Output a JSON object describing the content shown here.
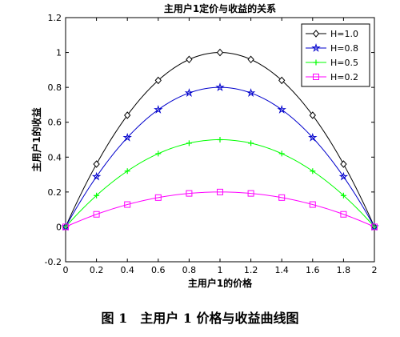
{
  "caption": "图 1　主用户 1 价格与收益曲线图",
  "chart_data": {
    "type": "line",
    "title": "主用户1定价与收益的关系",
    "xlabel": "主用户1的价格",
    "ylabel": "主用户1的收益",
    "xlim": [
      0,
      2
    ],
    "ylim": [
      -0.2,
      1.2
    ],
    "xticks": [
      "0",
      "0.2",
      "0.4",
      "0.6",
      "0.8",
      "1",
      "1.2",
      "1.4",
      "1.6",
      "1.8",
      "2"
    ],
    "yticks": [
      "-0.2",
      "0",
      "0.2",
      "0.4",
      "0.6",
      "0.8",
      "1",
      "1.2"
    ],
    "x": [
      0,
      0.2,
      0.4,
      0.6,
      0.8,
      1.0,
      1.2,
      1.4,
      1.6,
      1.8,
      2.0
    ],
    "legend_position": "top-right",
    "grid": false,
    "series": [
      {
        "name": "H=1.0",
        "color": "#000000",
        "marker": "diamond",
        "values": [
          0,
          0.36,
          0.64,
          0.84,
          0.96,
          1.0,
          0.96,
          0.84,
          0.64,
          0.36,
          0
        ]
      },
      {
        "name": "H=0.8",
        "color": "#0000cc",
        "marker": "star",
        "values": [
          0,
          0.288,
          0.512,
          0.672,
          0.768,
          0.8,
          0.768,
          0.672,
          0.512,
          0.288,
          0
        ]
      },
      {
        "name": "H=0.5",
        "color": "#00ff00",
        "marker": "plus",
        "values": [
          0,
          0.18,
          0.32,
          0.42,
          0.48,
          0.5,
          0.48,
          0.42,
          0.32,
          0.18,
          0
        ]
      },
      {
        "name": "H=0.2",
        "color": "#ff00ff",
        "marker": "square",
        "values": [
          0,
          0.072,
          0.128,
          0.168,
          0.192,
          0.2,
          0.192,
          0.168,
          0.128,
          0.072,
          0
        ]
      }
    ]
  }
}
